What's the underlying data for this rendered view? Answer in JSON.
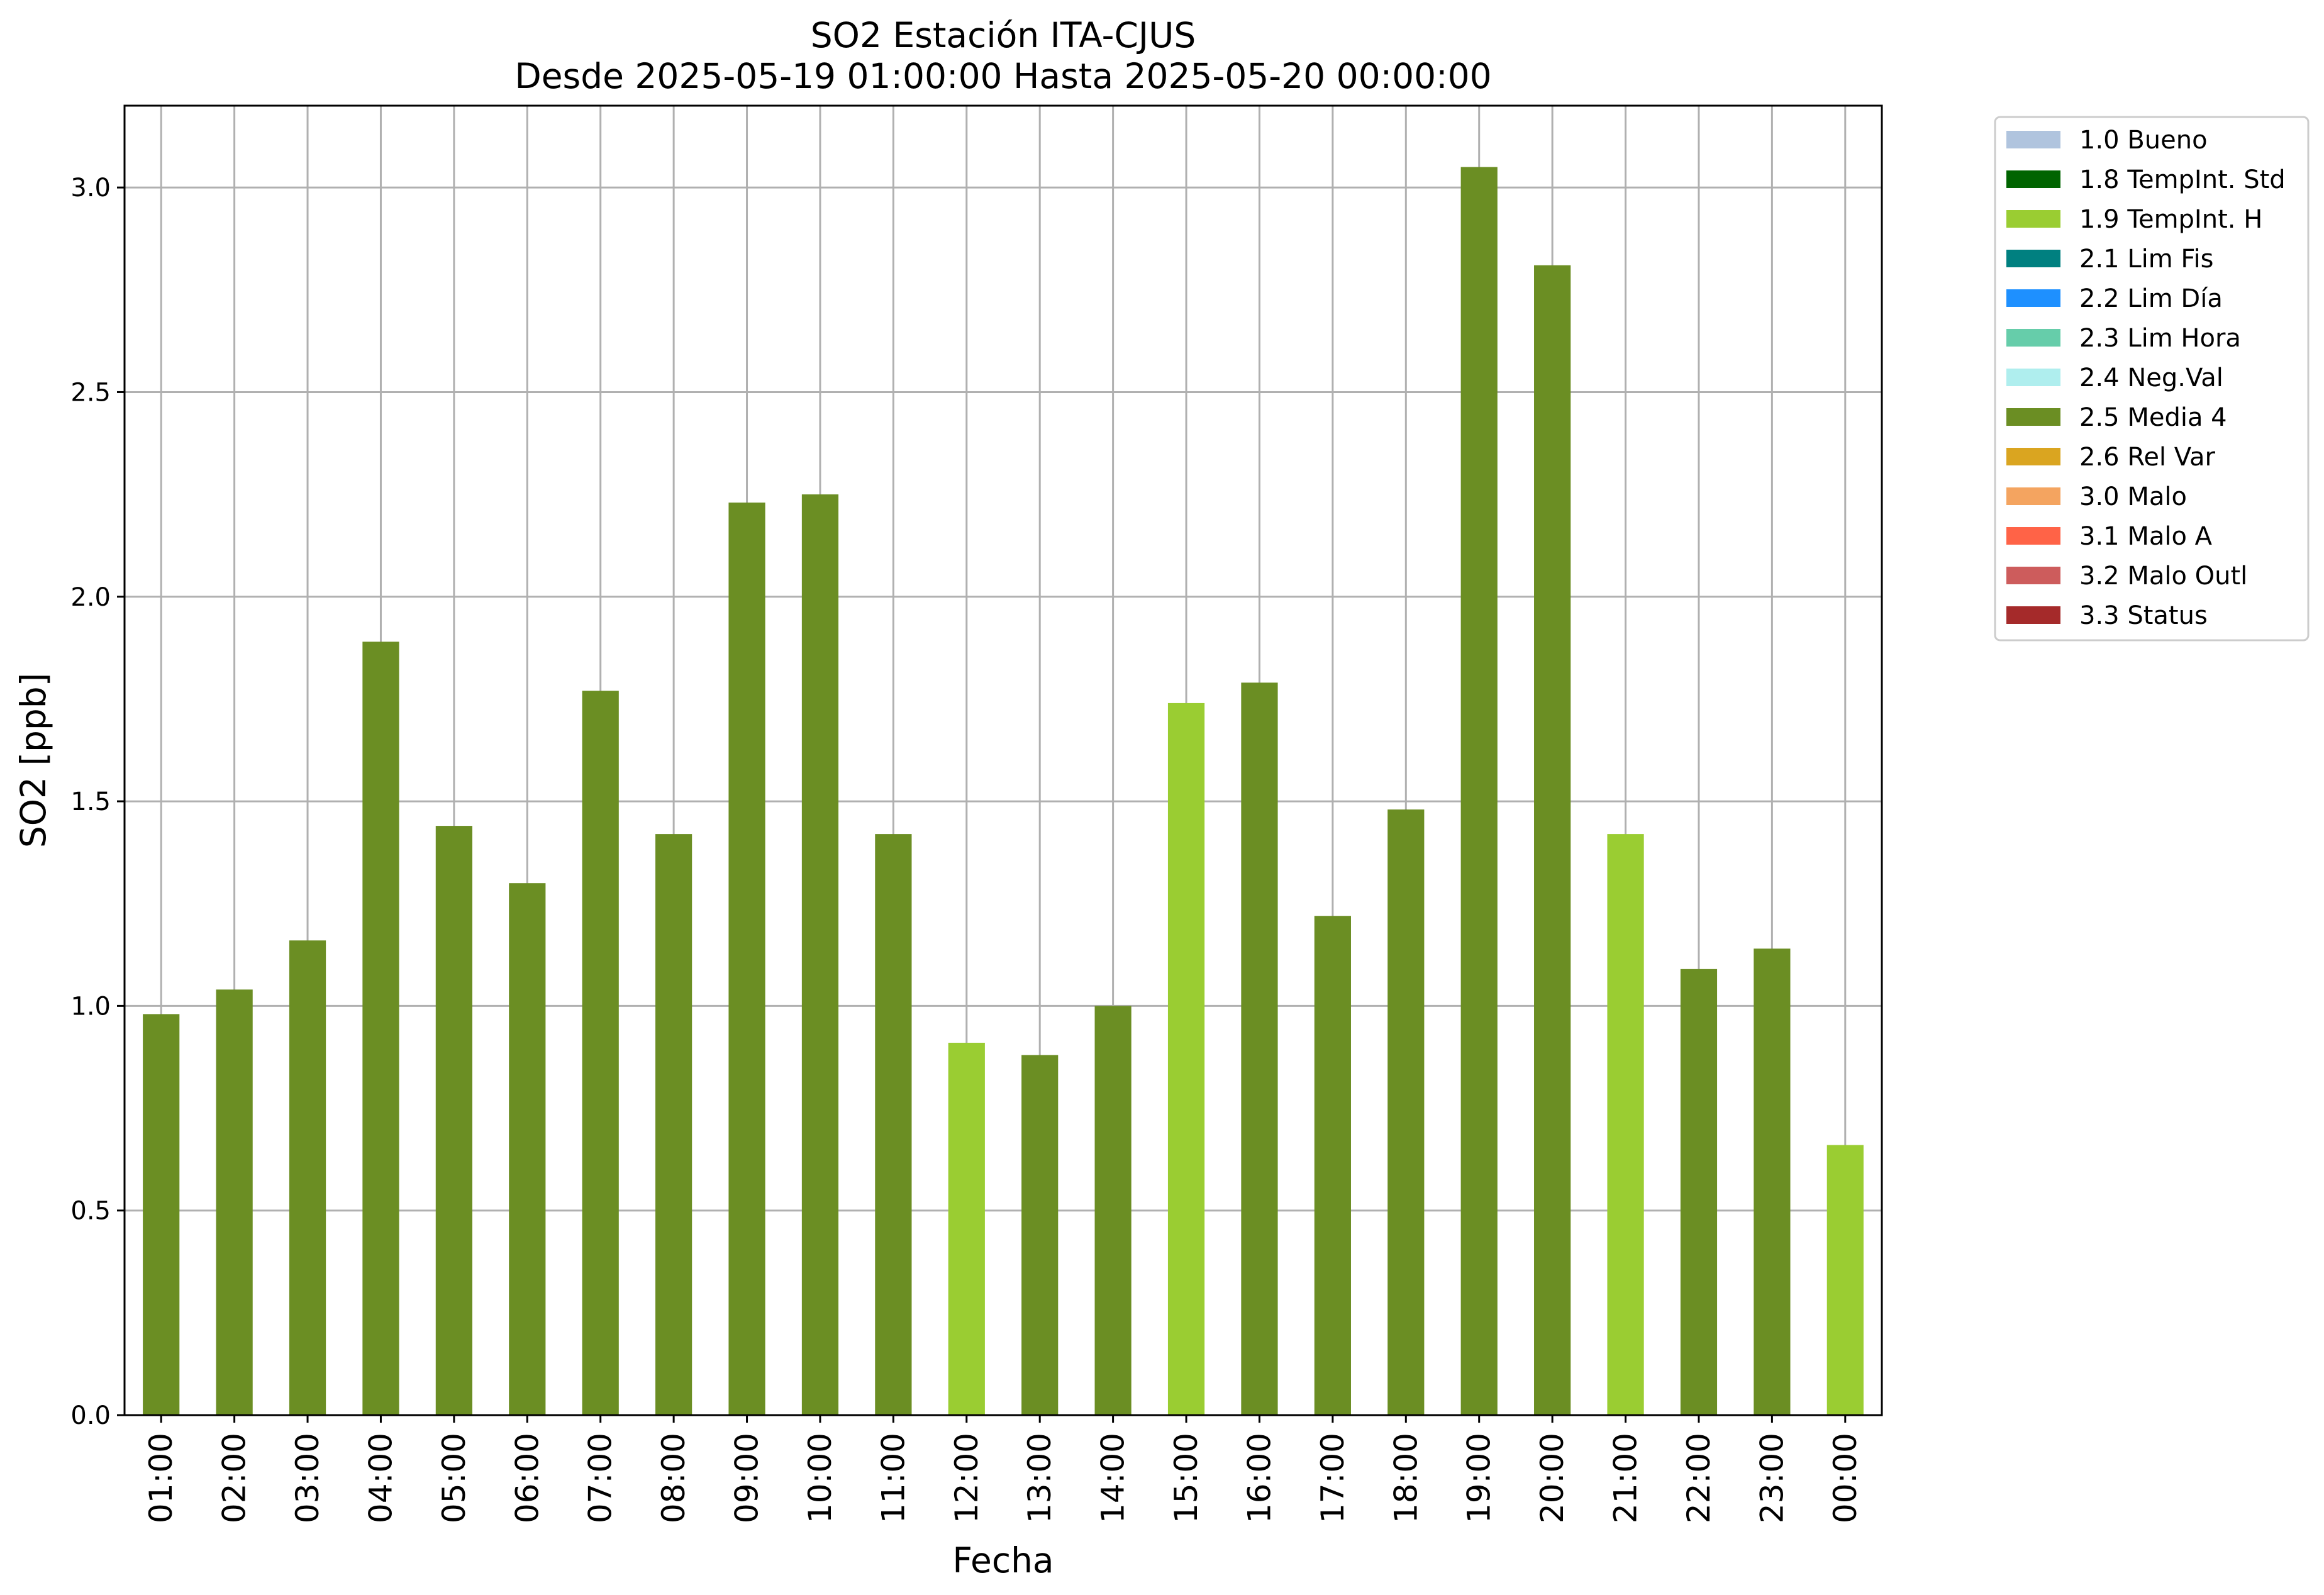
{
  "chart_data": {
    "type": "bar",
    "title": "SO2 Estación ITA-CJUS",
    "subtitle": "Desde 2025-05-19 01:00:00 Hasta 2025-05-20 00:00:00",
    "xlabel": "Fecha",
    "ylabel": "SO2 [ppb]",
    "ylim": [
      0,
      3.2
    ],
    "yticks": [
      "0.0",
      "0.5",
      "1.0",
      "1.5",
      "2.0",
      "2.5",
      "3.0"
    ],
    "grid": true,
    "legend_position": "outside-top-right",
    "categories": [
      "01:00",
      "02:00",
      "03:00",
      "04:00",
      "05:00",
      "06:00",
      "07:00",
      "08:00",
      "09:00",
      "10:00",
      "11:00",
      "12:00",
      "13:00",
      "14:00",
      "15:00",
      "16:00",
      "17:00",
      "18:00",
      "19:00",
      "20:00",
      "21:00",
      "22:00",
      "23:00",
      "00:00"
    ],
    "values": [
      0.98,
      1.04,
      1.16,
      1.89,
      1.44,
      1.3,
      1.77,
      1.42,
      2.23,
      2.25,
      1.42,
      0.91,
      0.88,
      1.0,
      1.74,
      1.79,
      1.22,
      1.48,
      3.05,
      2.81,
      1.42,
      1.09,
      1.14,
      0.66
    ],
    "flags": [
      "2.5 Media 4",
      "2.5 Media 4",
      "2.5 Media 4",
      "2.5 Media 4",
      "2.5 Media 4",
      "2.5 Media 4",
      "2.5 Media 4",
      "2.5 Media 4",
      "2.5 Media 4",
      "2.5 Media 4",
      "2.5 Media 4",
      "1.9 TempInt. H",
      "2.5 Media 4",
      "2.5 Media 4",
      "1.9 TempInt. H",
      "2.5 Media 4",
      "2.5 Media 4",
      "2.5 Media 4",
      "2.5 Media 4",
      "2.5 Media 4",
      "1.9 TempInt. H",
      "2.5 Media 4",
      "2.5 Media 4",
      "1.9 TempInt. H"
    ],
    "legend": [
      {
        "label": "1.0 Bueno",
        "color": "#b0c4de"
      },
      {
        "label": "1.8 TempInt. Std",
        "color": "#006400"
      },
      {
        "label": "1.9 TempInt. H",
        "color": "#9acd32"
      },
      {
        "label": "2.1 Lim Fis",
        "color": "#008080"
      },
      {
        "label": "2.2 Lim Día",
        "color": "#1e90ff"
      },
      {
        "label": "2.3 Lim Hora",
        "color": "#66cdaa"
      },
      {
        "label": "2.4 Neg.Val",
        "color": "#afeeee"
      },
      {
        "label": "2.5 Media 4",
        "color": "#6b8e23"
      },
      {
        "label": "2.6 Rel Var",
        "color": "#daa520"
      },
      {
        "label": "3.0 Malo",
        "color": "#f4a460"
      },
      {
        "label": "3.1 Malo A",
        "color": "#ff6347"
      },
      {
        "label": "3.2 Malo Outl",
        "color": "#cd5c5c"
      },
      {
        "label": "3.3 Status",
        "color": "#a52a2a"
      }
    ]
  }
}
